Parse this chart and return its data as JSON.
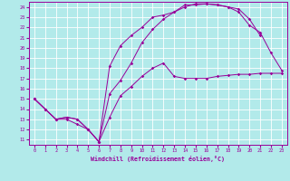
{
  "title": "",
  "xlabel": "Windchill (Refroidissement éolien,°C)",
  "bg_color": "#b2eaea",
  "grid_color": "#ffffff",
  "line_color": "#990099",
  "xlim": [
    -0.5,
    23.5
  ],
  "ylim": [
    10.5,
    24.5
  ],
  "xticks": [
    0,
    1,
    2,
    3,
    4,
    5,
    6,
    7,
    8,
    9,
    10,
    11,
    12,
    13,
    14,
    15,
    16,
    17,
    18,
    19,
    20,
    21,
    22,
    23
  ],
  "yticks": [
    11,
    12,
    13,
    14,
    15,
    16,
    17,
    18,
    19,
    20,
    21,
    22,
    23,
    24
  ],
  "line1_x": [
    0,
    1,
    2,
    3,
    4,
    5,
    6,
    7,
    8,
    9,
    10,
    11,
    12,
    13,
    14,
    15,
    16,
    17,
    18,
    19,
    20,
    21,
    22,
    23
  ],
  "line1_y": [
    15,
    14,
    13,
    13,
    12.5,
    12,
    10.8,
    13.2,
    15.3,
    16.2,
    17.2,
    18.0,
    18.5,
    17.2,
    17.0,
    17.0,
    17.0,
    17.2,
    17.3,
    17.4,
    17.4,
    17.5,
    17.5,
    17.5
  ],
  "line2_x": [
    0,
    1,
    2,
    3,
    4,
    5,
    6,
    7,
    8,
    9,
    10,
    11,
    12,
    13,
    14,
    15,
    16,
    17,
    18,
    19,
    20,
    21
  ],
  "line2_y": [
    15,
    14,
    13,
    13.2,
    13,
    12,
    10.8,
    18.2,
    20.2,
    21.2,
    22.0,
    23.0,
    23.2,
    23.5,
    24.2,
    24.2,
    24.3,
    24.2,
    24.0,
    23.8,
    22.8,
    21.2
  ],
  "line3_x": [
    0,
    1,
    2,
    3,
    4,
    5,
    6,
    7,
    8,
    9,
    10,
    11,
    12,
    13,
    14,
    15,
    16,
    17,
    18,
    19,
    20,
    21,
    22,
    23
  ],
  "line3_y": [
    15,
    14,
    13,
    13.2,
    13,
    12,
    10.8,
    15.5,
    16.8,
    18.5,
    20.5,
    21.8,
    22.8,
    23.5,
    24.0,
    24.3,
    24.3,
    24.2,
    24.0,
    23.5,
    22.2,
    21.5,
    19.5,
    17.8
  ]
}
